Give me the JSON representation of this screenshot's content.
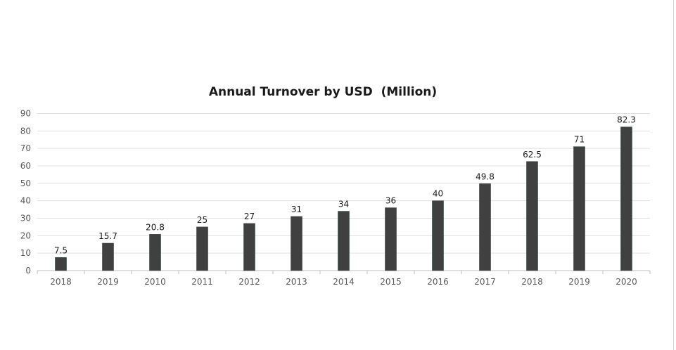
{
  "chart_data": {
    "type": "bar",
    "title": "Annual Turnover by USD  (Million)",
    "xlabel": "",
    "ylabel": "",
    "categories": [
      "2018",
      "2019",
      "2010",
      "2011",
      "2012",
      "2013",
      "2014",
      "2015",
      "2016",
      "2017",
      "2018",
      "2019",
      "2020"
    ],
    "values": [
      7.5,
      15.7,
      20.8,
      25,
      27,
      31,
      34,
      36,
      40,
      49.8,
      62.5,
      71,
      82.3
    ],
    "data_labels": [
      "7.5",
      "15.7",
      "20.8",
      "25",
      "27",
      "31",
      "34",
      "36",
      "40",
      "49.8",
      "62.5",
      "71",
      "82.3"
    ],
    "ylim": [
      0,
      90
    ],
    "yticks": [
      0,
      10,
      20,
      30,
      40,
      50,
      60,
      70,
      80,
      90
    ],
    "grid": true,
    "legend": "none",
    "bar_color": "#404040"
  }
}
